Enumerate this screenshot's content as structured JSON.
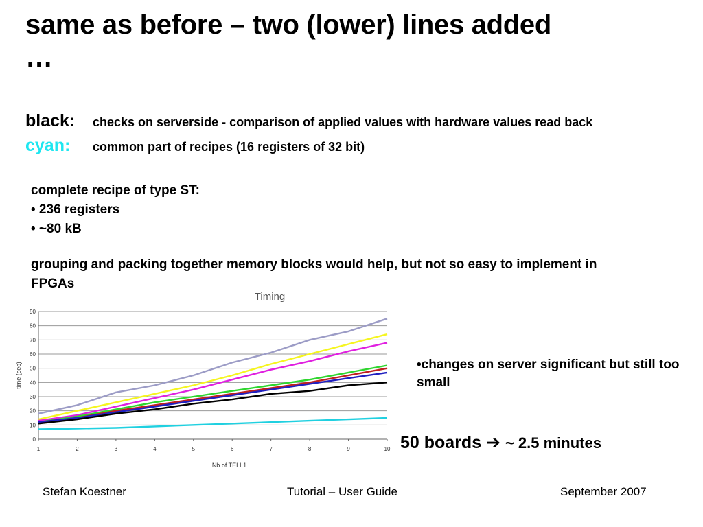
{
  "slide": {
    "title": "same as before – two (lower) lines added …",
    "legend": [
      {
        "key": "black:",
        "desc": "checks on serverside - comparison of applied values with hardware values read back"
      },
      {
        "key": "cyan:",
        "desc": "common part of recipes (16 registers of 32 bit)"
      }
    ],
    "recipe": {
      "heading": "complete recipe of type ST:",
      "bullets": [
        "• 236 registers",
        "• ~80 kB"
      ]
    },
    "grouping": "grouping and packing together memory blocks would help, but not so easy to implement in FPGAs",
    "changes": "•changes on server significant but still too small",
    "boards": {
      "left": "50 boards",
      "arrow": "➔",
      "right": "~ 2.5 minutes"
    },
    "footer": {
      "left": "Stefan Koestner",
      "center": "Tutorial – User Guide",
      "right": "September 2007"
    },
    "colors": {
      "cyan_text": "#1ee6f0"
    }
  },
  "chart_data": {
    "type": "line",
    "title": "Timing",
    "xlabel": "Nb of TELL1",
    "ylabel": "time (sec)",
    "x": [
      1,
      2,
      3,
      4,
      5,
      6,
      7,
      8,
      9,
      10
    ],
    "xlim": [
      1,
      10
    ],
    "ylim": [
      0,
      90
    ],
    "yticks": [
      0,
      10,
      20,
      30,
      40,
      50,
      60,
      70,
      80,
      90
    ],
    "grid": "horizontal",
    "series": [
      {
        "color": "#9c9cc6",
        "values": [
          18,
          24,
          33,
          38,
          45,
          54,
          61,
          70,
          76,
          85
        ]
      },
      {
        "color": "#f5f520",
        "values": [
          14,
          20,
          26,
          32,
          38,
          45,
          53,
          60,
          67,
          74
        ]
      },
      {
        "color": "#e020e0",
        "values": [
          13,
          17,
          23,
          29,
          35,
          42,
          49,
          55,
          62,
          68
        ]
      },
      {
        "color": "#2ed62e",
        "values": [
          12,
          16,
          21,
          26,
          30,
          34,
          38,
          42,
          47,
          52
        ]
      },
      {
        "color": "#c02020",
        "values": [
          12,
          15,
          20,
          24,
          28,
          32,
          36,
          40,
          45,
          50
        ]
      },
      {
        "color": "#2020c0",
        "values": [
          12,
          15,
          19,
          23,
          27,
          31,
          35,
          39,
          43,
          47
        ]
      },
      {
        "color": "#000000",
        "values": [
          11,
          14,
          18,
          21,
          25,
          28,
          32,
          34,
          38,
          40
        ]
      },
      {
        "color": "#20d0e0",
        "values": [
          7,
          7.5,
          8,
          9,
          10,
          11,
          12,
          13,
          14,
          15
        ]
      }
    ]
  }
}
